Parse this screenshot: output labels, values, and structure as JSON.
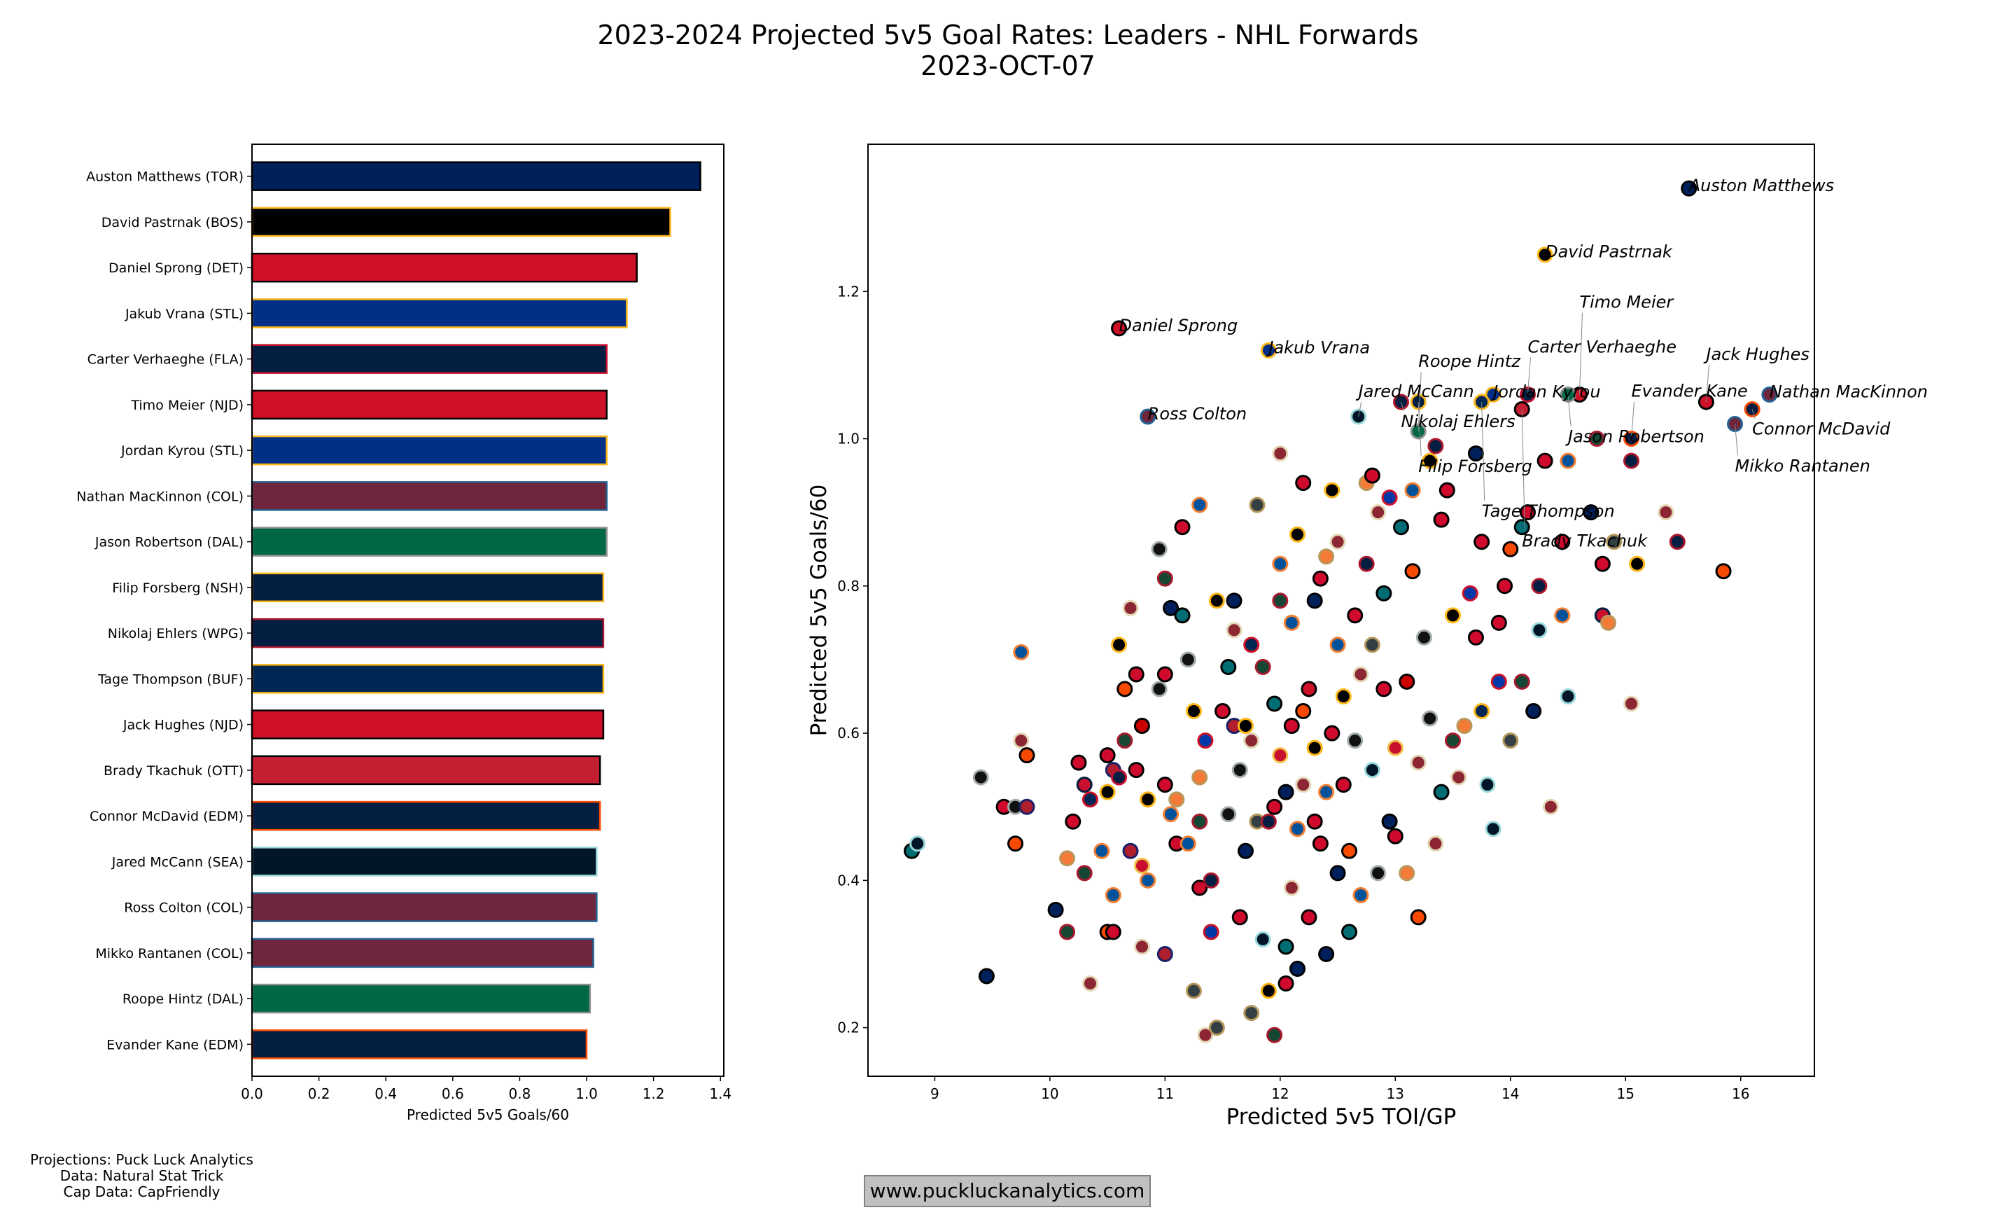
{
  "title": {
    "line1": "2023-2024 Projected 5v5 Goal Rates: Leaders - NHL Forwards",
    "line2": "2023-OCT-07"
  },
  "credits": [
    "Projections: Puck Luck Analytics",
    "Data: Natural Stat Trick",
    "Cap Data: CapFriendly"
  ],
  "watermark": "www.puckluckanalytics.com",
  "team_colors": {
    "TOR": [
      "#00205B",
      "#000000"
    ],
    "BOS": [
      "#000000",
      "#FFB81C"
    ],
    "DET": [
      "#CE1126",
      "#000000"
    ],
    "STL": [
      "#002F87",
      "#FCB514"
    ],
    "FLA": [
      "#041E42",
      "#C8102E"
    ],
    "NJD": [
      "#CE1126",
      "#000000"
    ],
    "COL": [
      "#6F263D",
      "#236192"
    ],
    "DAL": [
      "#006847",
      "#8F8F8C"
    ],
    "NSH": [
      "#041E42",
      "#FFB81C"
    ],
    "WPG": [
      "#041E42",
      "#AC162C"
    ],
    "BUF": [
      "#002654",
      "#FCB514"
    ],
    "OTT": [
      "#C52032",
      "#000000"
    ],
    "EDM": [
      "#041E42",
      "#FF4C00"
    ],
    "SEA": [
      "#001628",
      "#99D9D9"
    ],
    "PHI": [
      "#F74902",
      "#000000"
    ],
    "CHI": [
      "#CF0A2C",
      "#000000"
    ],
    "MIN": [
      "#154734",
      "#A6192E"
    ],
    "CAR": [
      "#CC0000",
      "#000000"
    ],
    "NYR": [
      "#0038A8",
      "#CE1126"
    ],
    "NYI": [
      "#00539B",
      "#F47D30"
    ],
    "WSH": [
      "#C8102E",
      "#041E42"
    ],
    "VGK": [
      "#333F42",
      "#B4975A"
    ],
    "PIT": [
      "#000000",
      "#FCB514"
    ],
    "MTL": [
      "#AF1E2D",
      "#192168"
    ],
    "CGY": [
      "#C8102E",
      "#F1BE48"
    ],
    "ANA": [
      "#F47A38",
      "#B9975B"
    ],
    "LAK": [
      "#111111",
      "#A2AAAD"
    ],
    "SJS": [
      "#006D75",
      "#000000"
    ],
    "CBJ": [
      "#002654",
      "#CE1126"
    ],
    "ARI": [
      "#8C2633",
      "#E2D6B5"
    ]
  },
  "chart_data": [
    {
      "type": "bar",
      "orientation": "horizontal",
      "xlabel": "Predicted 5v5 Goals/60",
      "xlim": [
        0,
        1.41
      ],
      "xticks": [
        "0.0",
        "0.2",
        "0.4",
        "0.6",
        "0.8",
        "1.0",
        "1.2",
        "1.4"
      ],
      "categories": [
        "Auston Matthews (TOR)",
        "David Pastrnak (BOS)",
        "Daniel Sprong (DET)",
        "Jakub Vrana (STL)",
        "Carter Verhaeghe (FLA)",
        "Timo Meier (NJD)",
        "Jordan Kyrou (STL)",
        "Nathan MacKinnon (COL)",
        "Jason Robertson (DAL)",
        "Filip Forsberg (NSH)",
        "Nikolaj Ehlers (WPG)",
        "Tage Thompson (BUF)",
        "Jack Hughes (NJD)",
        "Brady Tkachuk (OTT)",
        "Connor McDavid (EDM)",
        "Jared McCann (SEA)",
        "Ross Colton (COL)",
        "Mikko Rantanen (COL)",
        "Roope Hintz (DAL)",
        "Evander Kane (EDM)"
      ],
      "teams": [
        "TOR",
        "BOS",
        "DET",
        "STL",
        "FLA",
        "NJD",
        "STL",
        "COL",
        "DAL",
        "NSH",
        "WPG",
        "BUF",
        "NJD",
        "OTT",
        "EDM",
        "SEA",
        "COL",
        "COL",
        "DAL",
        "EDM"
      ],
      "values": [
        1.34,
        1.25,
        1.15,
        1.12,
        1.06,
        1.06,
        1.06,
        1.06,
        1.06,
        1.05,
        1.05,
        1.05,
        1.05,
        1.04,
        1.04,
        1.03,
        1.03,
        1.02,
        1.01,
        1.0
      ]
    },
    {
      "type": "scatter",
      "xlabel": "Predicted 5v5 TOI/GP",
      "ylabel": "Predicted 5v5 Goals/60",
      "xlim": [
        8.42,
        16.64
      ],
      "ylim": [
        0.134,
        1.4
      ],
      "xticks": [
        9,
        10,
        11,
        12,
        13,
        14,
        15,
        16
      ],
      "yticks": [
        "0.2",
        "0.4",
        "0.6",
        "0.8",
        "1.0",
        "1.2"
      ],
      "labeled_points": [
        {
          "name": "Auston Matthews",
          "x": 15.55,
          "y": 1.34,
          "team": "TOR"
        },
        {
          "name": "David Pastrnak",
          "x": 14.3,
          "y": 1.25,
          "team": "BOS"
        },
        {
          "name": "Daniel Sprong",
          "x": 10.6,
          "y": 1.15,
          "team": "DET"
        },
        {
          "name": "Jakub Vrana",
          "x": 11.9,
          "y": 1.12,
          "team": "STL"
        },
        {
          "name": "Carter Verhaeghe",
          "x": 14.15,
          "y": 1.06,
          "team": "FLA"
        },
        {
          "name": "Timo Meier",
          "x": 14.6,
          "y": 1.06,
          "team": "NJD"
        },
        {
          "name": "Jordan Kyrou",
          "x": 13.85,
          "y": 1.06,
          "team": "STL"
        },
        {
          "name": "Nathan MacKinnon",
          "x": 16.25,
          "y": 1.06,
          "team": "COL"
        },
        {
          "name": "Jason Robertson",
          "x": 14.5,
          "y": 1.06,
          "team": "DAL"
        },
        {
          "name": "Filip Forsberg",
          "x": 13.2,
          "y": 1.05,
          "team": "NSH"
        },
        {
          "name": "Nikolaj Ehlers",
          "x": 13.05,
          "y": 1.05,
          "team": "WPG"
        },
        {
          "name": "Tage Thompson",
          "x": 13.75,
          "y": 1.05,
          "team": "BUF"
        },
        {
          "name": "Jack Hughes",
          "x": 15.7,
          "y": 1.05,
          "team": "NJD"
        },
        {
          "name": "Brady Tkachuk",
          "x": 14.1,
          "y": 1.04,
          "team": "OTT"
        },
        {
          "name": "Connor McDavid",
          "x": 16.1,
          "y": 1.04,
          "team": "EDM"
        },
        {
          "name": "Jared McCann",
          "x": 12.68,
          "y": 1.03,
          "team": "SEA"
        },
        {
          "name": "Ross Colton",
          "x": 10.85,
          "y": 1.03,
          "team": "COL"
        },
        {
          "name": "Mikko Rantanen",
          "x": 15.95,
          "y": 1.02,
          "team": "COL"
        },
        {
          "name": "Roope Hintz",
          "x": 13.2,
          "y": 1.01,
          "team": "DAL"
        },
        {
          "name": "Evander Kane",
          "x": 15.05,
          "y": 1.0,
          "team": "EDM"
        }
      ],
      "points": [
        [
          9.45,
          0.27,
          "TOR"
        ],
        [
          8.8,
          0.44,
          "SJS"
        ],
        [
          8.85,
          0.45,
          "SEA"
        ],
        [
          9.4,
          0.54,
          "LAK"
        ],
        [
          9.6,
          0.5,
          "CHI"
        ],
        [
          9.7,
          0.5,
          "LAK"
        ],
        [
          9.8,
          0.5,
          "MTL"
        ],
        [
          9.7,
          0.45,
          "PHI"
        ],
        [
          9.75,
          0.59,
          "ARI"
        ],
        [
          9.8,
          0.57,
          "PHI"
        ],
        [
          9.75,
          0.71,
          "NYI"
        ],
        [
          10.05,
          0.36,
          "TOR"
        ],
        [
          10.15,
          0.33,
          "MIN"
        ],
        [
          10.15,
          0.43,
          "ANA"
        ],
        [
          10.2,
          0.48,
          "CHI"
        ],
        [
          10.25,
          0.56,
          "CHI"
        ],
        [
          10.3,
          0.53,
          "WSH"
        ],
        [
          10.3,
          0.41,
          "MIN"
        ],
        [
          10.35,
          0.26,
          "ARI"
        ],
        [
          10.35,
          0.51,
          "CBJ"
        ],
        [
          10.45,
          0.44,
          "NYI"
        ],
        [
          10.5,
          0.57,
          "CHI"
        ],
        [
          10.5,
          0.52,
          "PIT"
        ],
        [
          10.5,
          0.33,
          "PHI"
        ],
        [
          10.55,
          0.33,
          "CHI"
        ],
        [
          10.55,
          0.38,
          "NYI"
        ],
        [
          10.55,
          0.55,
          "MTL"
        ],
        [
          10.6,
          0.54,
          "FLA"
        ],
        [
          10.6,
          0.72,
          "PIT"
        ],
        [
          10.65,
          0.66,
          "PHI"
        ],
        [
          10.65,
          0.59,
          "MIN"
        ],
        [
          10.7,
          0.44,
          "MTL"
        ],
        [
          10.7,
          0.77,
          "ARI"
        ],
        [
          10.75,
          0.68,
          "CHI"
        ],
        [
          10.75,
          0.55,
          "CHI"
        ],
        [
          10.8,
          0.61,
          "CAR"
        ],
        [
          10.8,
          0.31,
          "ARI"
        ],
        [
          10.8,
          0.42,
          "CGY"
        ],
        [
          10.85,
          0.4,
          "NYI"
        ],
        [
          10.85,
          0.51,
          "PIT"
        ],
        [
          10.95,
          0.66,
          "LAK"
        ],
        [
          10.95,
          0.85,
          "LAK"
        ],
        [
          11.0,
          0.81,
          "MIN"
        ],
        [
          11.0,
          0.68,
          "CHI"
        ],
        [
          11.0,
          0.53,
          "CHI"
        ],
        [
          11.0,
          0.3,
          "MTL"
        ],
        [
          11.05,
          0.77,
          "TOR"
        ],
        [
          11.05,
          0.49,
          "NYI"
        ],
        [
          11.1,
          0.45,
          "CHI"
        ],
        [
          11.1,
          0.51,
          "ANA"
        ],
        [
          11.15,
          0.88,
          "CHI"
        ],
        [
          11.15,
          0.76,
          "SJS"
        ],
        [
          11.2,
          0.7,
          "LAK"
        ],
        [
          11.2,
          0.45,
          "NYI"
        ],
        [
          11.25,
          0.63,
          "PIT"
        ],
        [
          11.25,
          0.25,
          "VGK"
        ],
        [
          11.3,
          0.54,
          "ANA"
        ],
        [
          11.3,
          0.48,
          "MIN"
        ],
        [
          11.3,
          0.39,
          "CHI"
        ],
        [
          11.3,
          0.91,
          "NYI"
        ],
        [
          11.35,
          0.59,
          "NYR"
        ],
        [
          11.35,
          0.19,
          "ARI"
        ],
        [
          11.4,
          0.4,
          "WPG"
        ],
        [
          11.4,
          0.33,
          "NYR"
        ],
        [
          11.45,
          0.2,
          "VGK"
        ],
        [
          11.45,
          0.78,
          "PIT"
        ],
        [
          11.5,
          0.63,
          "CHI"
        ],
        [
          11.55,
          0.49,
          "LAK"
        ],
        [
          11.55,
          0.69,
          "SJS"
        ],
        [
          11.6,
          0.78,
          "TOR"
        ],
        [
          11.6,
          0.74,
          "ARI"
        ],
        [
          11.6,
          0.61,
          "MTL"
        ],
        [
          11.65,
          0.55,
          "LAK"
        ],
        [
          11.65,
          0.35,
          "CHI"
        ],
        [
          11.7,
          0.44,
          "TOR"
        ],
        [
          11.7,
          0.61,
          "PIT"
        ],
        [
          11.75,
          0.59,
          "ARI"
        ],
        [
          11.75,
          0.72,
          "CBJ"
        ],
        [
          11.75,
          0.22,
          "VGK"
        ],
        [
          11.8,
          0.91,
          "VGK"
        ],
        [
          11.8,
          0.48,
          "VGK"
        ],
        [
          11.85,
          0.69,
          "MIN"
        ],
        [
          11.85,
          0.32,
          "SEA"
        ],
        [
          11.9,
          0.25,
          "PIT"
        ],
        [
          11.9,
          0.48,
          "WPG"
        ],
        [
          11.95,
          0.5,
          "CHI"
        ],
        [
          11.95,
          0.64,
          "SJS"
        ],
        [
          11.95,
          0.19,
          "MIN"
        ],
        [
          12.0,
          0.98,
          "ARI"
        ],
        [
          12.0,
          0.83,
          "NYI"
        ],
        [
          12.0,
          0.78,
          "MIN"
        ],
        [
          12.0,
          0.57,
          "CGY"
        ],
        [
          12.05,
          0.26,
          "CHI"
        ],
        [
          12.05,
          0.31,
          "SJS"
        ],
        [
          12.05,
          0.52,
          "TOR"
        ],
        [
          12.1,
          0.61,
          "CHI"
        ],
        [
          12.1,
          0.75,
          "NYI"
        ],
        [
          12.1,
          0.39,
          "ARI"
        ],
        [
          12.15,
          0.87,
          "PIT"
        ],
        [
          12.15,
          0.47,
          "NYI"
        ],
        [
          12.15,
          0.28,
          "TOR"
        ],
        [
          12.2,
          0.94,
          "CHI"
        ],
        [
          12.2,
          0.53,
          "ARI"
        ],
        [
          12.2,
          0.63,
          "PHI"
        ],
        [
          12.25,
          0.66,
          "DET"
        ],
        [
          12.25,
          0.35,
          "CHI"
        ],
        [
          12.3,
          0.78,
          "TOR"
        ],
        [
          12.3,
          0.58,
          "PIT"
        ],
        [
          12.3,
          0.48,
          "CHI"
        ],
        [
          12.35,
          0.81,
          "CHI"
        ],
        [
          12.35,
          0.45,
          "CHI"
        ],
        [
          12.4,
          0.84,
          "ANA"
        ],
        [
          12.4,
          0.52,
          "NYI"
        ],
        [
          12.4,
          0.3,
          "TOR"
        ],
        [
          12.45,
          0.6,
          "CHI"
        ],
        [
          12.45,
          0.93,
          "PIT"
        ],
        [
          12.5,
          0.86,
          "ARI"
        ],
        [
          12.5,
          0.72,
          "NYI"
        ],
        [
          12.5,
          0.41,
          "TOR"
        ],
        [
          12.55,
          0.53,
          "CHI"
        ],
        [
          12.55,
          0.65,
          "PIT"
        ],
        [
          12.6,
          0.44,
          "PHI"
        ],
        [
          12.6,
          0.33,
          "SJS"
        ],
        [
          12.65,
          0.76,
          "CHI"
        ],
        [
          12.65,
          0.59,
          "LAK"
        ],
        [
          12.7,
          0.68,
          "ARI"
        ],
        [
          12.7,
          0.38,
          "NYI"
        ],
        [
          12.75,
          0.94,
          "ANA"
        ],
        [
          12.75,
          0.83,
          "WPG"
        ],
        [
          12.8,
          0.95,
          "CHI"
        ],
        [
          12.8,
          0.72,
          "VGK"
        ],
        [
          12.8,
          0.55,
          "SEA"
        ],
        [
          12.85,
          0.9,
          "ARI"
        ],
        [
          12.85,
          0.41,
          "LAK"
        ],
        [
          12.9,
          0.66,
          "CHI"
        ],
        [
          12.9,
          0.79,
          "SJS"
        ],
        [
          12.95,
          0.92,
          "NYR"
        ],
        [
          12.95,
          0.48,
          "TOR"
        ],
        [
          13.0,
          0.58,
          "CGY"
        ],
        [
          13.0,
          0.46,
          "CHI"
        ],
        [
          13.05,
          0.88,
          "SJS"
        ],
        [
          13.1,
          0.67,
          "CAR"
        ],
        [
          13.1,
          0.41,
          "ANA"
        ],
        [
          13.15,
          0.93,
          "NYI"
        ],
        [
          13.15,
          0.82,
          "PHI"
        ],
        [
          13.2,
          0.35,
          "PHI"
        ],
        [
          13.2,
          0.56,
          "ARI"
        ],
        [
          13.25,
          0.73,
          "LAK"
        ],
        [
          13.3,
          0.97,
          "PIT"
        ],
        [
          13.3,
          0.62,
          "LAK"
        ],
        [
          13.35,
          0.99,
          "WPG"
        ],
        [
          13.35,
          0.45,
          "ARI"
        ],
        [
          13.4,
          0.89,
          "CHI"
        ],
        [
          13.4,
          0.52,
          "SJS"
        ],
        [
          13.45,
          0.93,
          "CHI"
        ],
        [
          13.5,
          0.76,
          "PIT"
        ],
        [
          13.5,
          0.59,
          "MIN"
        ],
        [
          13.55,
          0.54,
          "ARI"
        ],
        [
          13.6,
          0.61,
          "ANA"
        ],
        [
          13.65,
          0.79,
          "NYR"
        ],
        [
          13.7,
          0.98,
          "TOR"
        ],
        [
          13.7,
          0.73,
          "CHI"
        ],
        [
          13.75,
          0.86,
          "CHI"
        ],
        [
          13.75,
          0.63,
          "BUF"
        ],
        [
          13.8,
          0.53,
          "SEA"
        ],
        [
          13.85,
          0.47,
          "SEA"
        ],
        [
          13.9,
          0.75,
          "CHI"
        ],
        [
          13.9,
          0.67,
          "NYR"
        ],
        [
          13.95,
          0.8,
          "CHI"
        ],
        [
          14.0,
          0.59,
          "VGK"
        ],
        [
          14.0,
          0.85,
          "PHI"
        ],
        [
          14.1,
          0.88,
          "SJS"
        ],
        [
          14.1,
          0.67,
          "MIN"
        ],
        [
          14.15,
          0.9,
          "CHI"
        ],
        [
          14.2,
          0.63,
          "TOR"
        ],
        [
          14.25,
          0.74,
          "SEA"
        ],
        [
          14.25,
          0.8,
          "WPG"
        ],
        [
          14.3,
          0.97,
          "CHI"
        ],
        [
          14.35,
          0.5,
          "ARI"
        ],
        [
          14.45,
          0.76,
          "NYI"
        ],
        [
          14.45,
          0.86,
          "CHI"
        ],
        [
          14.5,
          0.97,
          "NYI"
        ],
        [
          14.5,
          0.65,
          "SEA"
        ],
        [
          14.7,
          0.9,
          "TOR"
        ],
        [
          14.75,
          1.0,
          "MIN"
        ],
        [
          14.8,
          0.76,
          "WSH"
        ],
        [
          14.85,
          0.75,
          "ANA"
        ],
        [
          14.8,
          0.83,
          "CHI"
        ],
        [
          14.9,
          0.86,
          "VGK"
        ],
        [
          15.05,
          0.97,
          "WPG"
        ],
        [
          15.05,
          0.64,
          "ARI"
        ],
        [
          15.1,
          0.83,
          "PIT"
        ],
        [
          15.35,
          0.9,
          "ARI"
        ],
        [
          15.45,
          0.86,
          "WPG"
        ],
        [
          15.85,
          0.82,
          "PHI"
        ]
      ]
    }
  ]
}
